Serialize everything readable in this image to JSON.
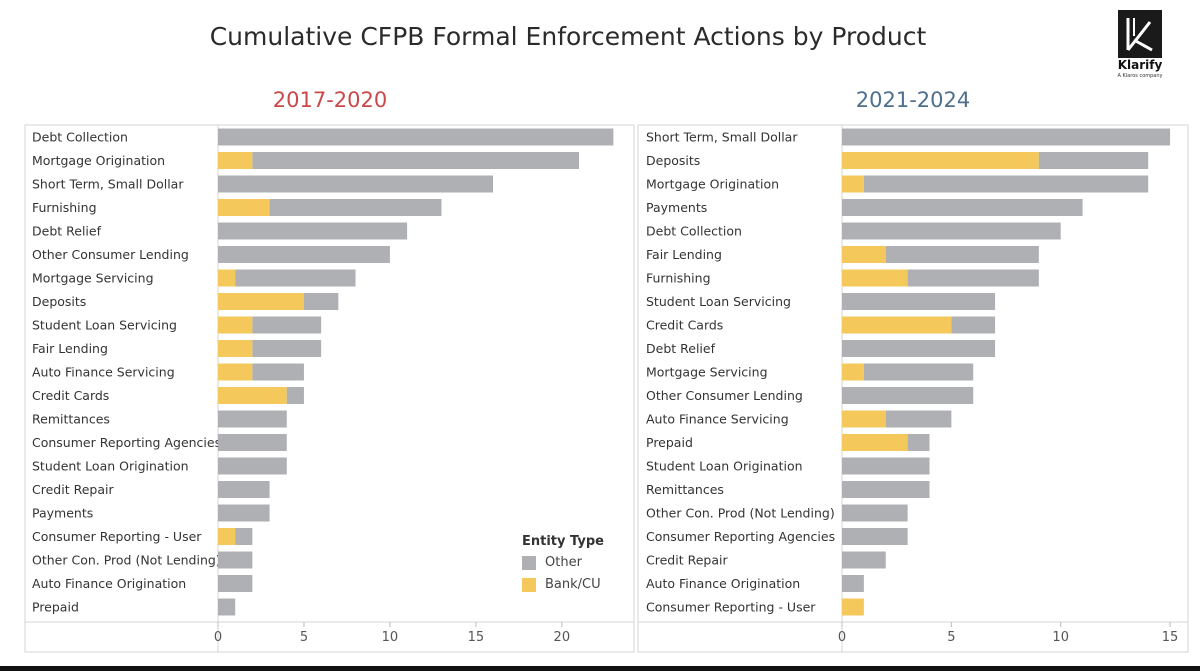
{
  "title": "Cumulative CFPB Formal Enforcement Actions by Product",
  "logo": {
    "name": "Klarify",
    "tagline": "A Klaros company",
    "icon": "klarify-k-icon"
  },
  "colors": {
    "other": "#aeb0b3",
    "bank": "#f5c85c",
    "left_title": "#c9494b",
    "right_title": "#4f6f8f"
  },
  "legend": {
    "title": "Entity Type",
    "items": [
      {
        "label": "Other",
        "color": "#aeb0b3"
      },
      {
        "label": "Bank/CU",
        "color": "#f5c85c"
      }
    ]
  },
  "chart_data": [
    {
      "type": "bar",
      "orientation": "horizontal",
      "stacked": true,
      "title": "2017-2020",
      "xlim": [
        0,
        23.5
      ],
      "xticks": [
        0,
        5,
        10,
        15,
        20
      ],
      "categories": [
        "Debt Collection",
        "Mortgage Origination",
        "Short Term, Small Dollar",
        "Furnishing",
        "Debt Relief",
        "Other Consumer Lending",
        "Mortgage Servicing",
        "Deposits",
        "Student Loan Servicing",
        "Fair Lending",
        "Auto Finance Servicing",
        "Credit Cards",
        "Remittances",
        "Consumer Reporting Agencies",
        "Student Loan Origination",
        "Credit Repair",
        "Payments",
        "Consumer Reporting - User",
        "Other Con. Prod (Not Lending)",
        "Auto Finance Origination",
        "Prepaid"
      ],
      "series": [
        {
          "name": "Bank/CU",
          "values": [
            0,
            2,
            0,
            3,
            0,
            0,
            1,
            5,
            2,
            2,
            2,
            4,
            0,
            0,
            0,
            0,
            0,
            1,
            0,
            0,
            0
          ]
        },
        {
          "name": "Other",
          "values": [
            23,
            19,
            16,
            10,
            11,
            10,
            7,
            2,
            4,
            4,
            3,
            1,
            4,
            4,
            4,
            3,
            3,
            1,
            2,
            2,
            1
          ]
        }
      ]
    },
    {
      "type": "bar",
      "orientation": "horizontal",
      "stacked": true,
      "title": "2021-2024",
      "xlim": [
        0,
        15.5
      ],
      "xticks": [
        0,
        5,
        10,
        15
      ],
      "categories": [
        "Short Term, Small Dollar",
        "Deposits",
        "Mortgage Origination",
        "Payments",
        "Debt Collection",
        "Fair Lending",
        "Furnishing",
        "Student Loan Servicing",
        "Credit Cards",
        "Debt Relief",
        "Mortgage Servicing",
        "Other Consumer Lending",
        "Auto Finance Servicing",
        "Prepaid",
        "Student Loan Origination",
        "Remittances",
        "Other Con. Prod (Not Lending)",
        "Consumer Reporting Agencies",
        "Credit Repair",
        "Auto Finance Origination",
        "Consumer Reporting - User"
      ],
      "series": [
        {
          "name": "Bank/CU",
          "values": [
            0,
            9,
            1,
            0,
            0,
            2,
            3,
            0,
            5,
            0,
            1,
            0,
            2,
            3,
            0,
            0,
            0,
            0,
            0,
            0,
            1
          ]
        },
        {
          "name": "Other",
          "values": [
            15,
            5,
            13,
            11,
            10,
            7,
            6,
            7,
            2,
            7,
            5,
            6,
            3,
            1,
            4,
            4,
            3,
            3,
            2,
            1,
            0
          ]
        }
      ]
    }
  ]
}
